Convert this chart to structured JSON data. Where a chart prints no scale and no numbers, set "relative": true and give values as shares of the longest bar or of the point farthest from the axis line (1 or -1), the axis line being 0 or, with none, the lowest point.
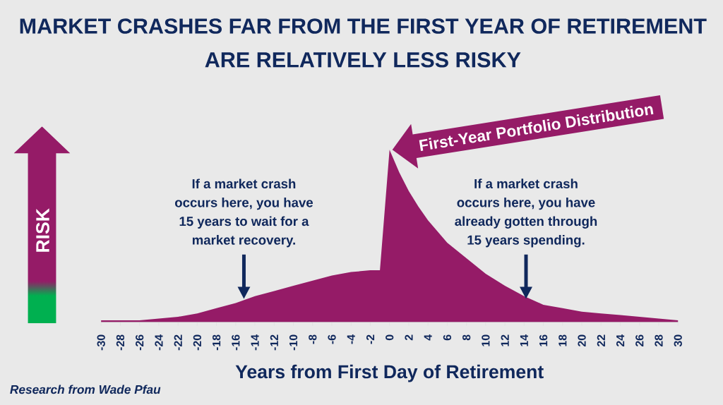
{
  "chart_data": {
    "type": "area",
    "title": "MARKET CRASHES FAR FROM THE FIRST YEAR OF RETIREMENT ARE RELATIVELY LESS RISKY",
    "xlabel": "Years from First Day of Retirement",
    "x": [
      -30,
      -28,
      -26,
      -24,
      -22,
      -20,
      -18,
      -16,
      -14,
      -12,
      -10,
      -8,
      -6,
      -4,
      -2,
      -1,
      0,
      1,
      2,
      3,
      4,
      6,
      8,
      10,
      12,
      14,
      16,
      18,
      20,
      22,
      24,
      26,
      28,
      30
    ],
    "values": [
      0.01,
      0.01,
      0.01,
      0.02,
      0.03,
      0.05,
      0.08,
      0.11,
      0.15,
      0.18,
      0.21,
      0.24,
      0.27,
      0.29,
      0.3,
      0.3,
      1,
      0.87,
      0.76,
      0.67,
      0.59,
      0.46,
      0.37,
      0.28,
      0.21,
      0.15,
      0.1,
      0.08,
      0.06,
      0.05,
      0.04,
      0.03,
      0.02,
      0.01
    ],
    "color": "#951b67",
    "relative": true,
    "xlim": [
      -30,
      30
    ],
    "xticks": [
      -30,
      -28,
      -26,
      -24,
      -22,
      -20,
      -18,
      -16,
      -14,
      -12,
      -10,
      -8,
      -6,
      -4,
      -2,
      0,
      2,
      4,
      6,
      8,
      10,
      12,
      14,
      16,
      18,
      20,
      22,
      24,
      26,
      28,
      30
    ],
    "annotations": [
      {
        "text": "First-Year Portfolio Distribution",
        "x": 0,
        "y": 1
      },
      "If a market crash occurs here, you have 15 years to wait for a market recovery.",
      "If a market crash occurs here, you have already gotten through 15 years spending.",
      "RISK",
      "Research from Wade Pfau"
    ]
  }
}
